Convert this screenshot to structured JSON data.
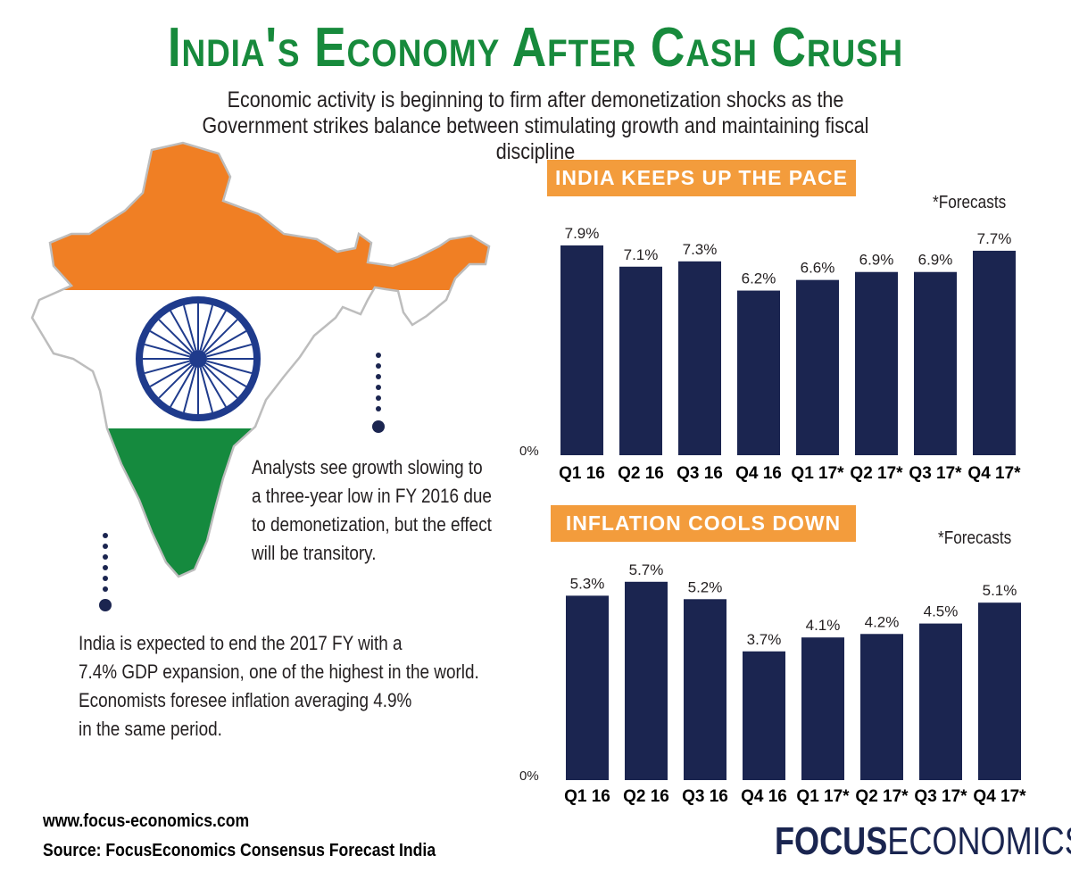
{
  "title": "India's Economy After Cash Crush",
  "subtitle": "Economic activity is beginning to firm after demonetization shocks as the Government strikes balance between stimulating growth and maintaining fiscal discipline",
  "notes": {
    "growth": [
      "Analysts see growth slowing to",
      "a three-year low in FY 2016 due",
      "to demonetization, but the effect",
      "will be transitory."
    ],
    "outlook": [
      "India is expected to end the 2017 FY with a",
      "7.4% GDP expansion, one of the highest in the world.",
      "Economists foresee inflation averaging 4.9%",
      "in the same period."
    ]
  },
  "colors": {
    "title_green": "#178a3c",
    "bar_navy": "#1b2550",
    "banner_orange": "#f39c3c",
    "flag_saffron": "#f07f24",
    "flag_green": "#158a3e",
    "chakra_navy": "#1f3b8c"
  },
  "chart_data": [
    {
      "type": "bar",
      "title": "INDIA KEEPS UP THE PACE",
      "note": "*Forecasts",
      "categories": [
        "Q1 16",
        "Q2 16",
        "Q3 16",
        "Q4 16",
        "Q1 17*",
        "Q2 17*",
        "Q3 17*",
        "Q4 17*"
      ],
      "values": [
        7.9,
        7.1,
        7.3,
        6.2,
        6.6,
        6.9,
        6.9,
        7.7
      ],
      "data_labels": [
        "7.9%",
        "7.1%",
        "7.3%",
        "6.2%",
        "6.6%",
        "6.9%",
        "6.9%",
        "7.7%"
      ],
      "ylim": [
        0,
        8
      ],
      "y_tick_label": "0%",
      "grid": false
    },
    {
      "type": "bar",
      "title": "INFLATION COOLS DOWN",
      "note": "*Forecasts",
      "categories": [
        "Q1 16",
        "Q2 16",
        "Q3 16",
        "Q4 16",
        "Q1 17*",
        "Q2 17*",
        "Q3 17*",
        "Q4 17*"
      ],
      "values": [
        5.3,
        5.7,
        5.2,
        3.7,
        4.1,
        4.2,
        4.5,
        5.1
      ],
      "data_labels": [
        "5.3%",
        "5.7%",
        "5.2%",
        "3.7%",
        "4.1%",
        "4.2%",
        "4.5%",
        "5.1%"
      ],
      "ylim": [
        0,
        5.9
      ],
      "y_tick_label": "0%",
      "grid": false
    }
  ],
  "footer": {
    "url": "www.focus-economics.com",
    "source": "Source: FocusEconomics Consensus Forecast India"
  },
  "brand": {
    "bold": "FOCUS",
    "light": "ECONOMICS"
  }
}
